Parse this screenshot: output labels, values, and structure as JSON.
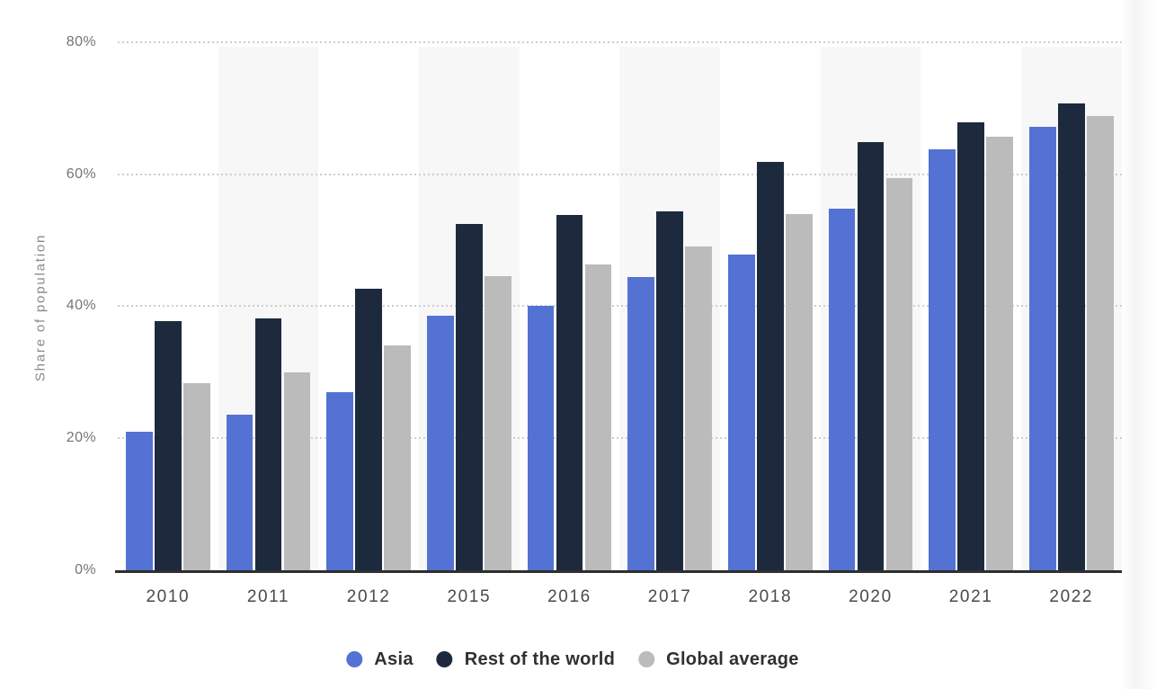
{
  "chart_data": {
    "type": "bar",
    "title": "",
    "categories": [
      "2010",
      "2011",
      "2012",
      "2015",
      "2016",
      "2017",
      "2018",
      "2020",
      "2021",
      "2022"
    ],
    "series": [
      {
        "name": "Asia",
        "color": "#5472d3",
        "values": [
          21.0,
          23.6,
          27.0,
          38.5,
          40.0,
          44.4,
          47.8,
          54.8,
          63.8,
          67.2
        ]
      },
      {
        "name": "Rest of the world",
        "color": "#1d2a3e",
        "values": [
          37.7,
          38.2,
          42.7,
          52.5,
          53.8,
          54.3,
          61.9,
          64.8,
          67.8,
          70.7
        ]
      },
      {
        "name": "Global average",
        "color": "#bbbbbb",
        "values": [
          28.3,
          30.0,
          34.0,
          44.6,
          46.3,
          49.0,
          54.0,
          59.4,
          65.6,
          68.8
        ]
      }
    ],
    "xlabel": "",
    "ylabel": "Share of population",
    "ylim": [
      0,
      80
    ],
    "yticks": [
      {
        "value": 0,
        "label": "0%"
      },
      {
        "value": 20,
        "label": "20%"
      },
      {
        "value": 40,
        "label": "40%"
      },
      {
        "value": 60,
        "label": "60%"
      },
      {
        "value": 80,
        "label": "80%"
      }
    ],
    "grid": "horizontal-dotted",
    "plot_bands": "alternating-category-columns",
    "legend_position": "bottom"
  },
  "style": {
    "background": "#ffffff",
    "band_color": "#f7f7f7",
    "gridline_color": "#cdcdcd",
    "axis_line_color": "#2e2e2e",
    "y_tick_color": "#757575",
    "x_tick_color": "#4a4a4a",
    "y_title_color": "#8a8a8a",
    "legend_text_color": "#303030"
  }
}
